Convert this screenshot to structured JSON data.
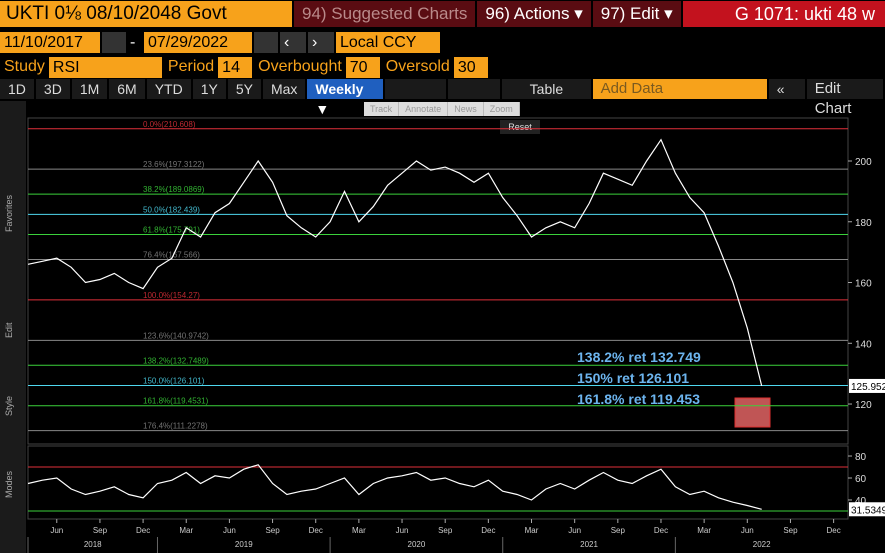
{
  "header": {
    "security": "UKTI 0⅛ 08/10/2048 Govt",
    "menus": [
      "94) Suggested Charts",
      "96) Actions ▾",
      "97) Edit ▾"
    ],
    "ticker": "G 1071: ukti 48 w"
  },
  "dates": {
    "start": "11/10/2017",
    "end": "07/29/2022",
    "currency": "Local CCY"
  },
  "study": {
    "label": "Study",
    "name": "RSI",
    "period_label": "Period",
    "period": "14",
    "overbought_label": "Overbought",
    "overbought": "70",
    "oversold_label": "Oversold",
    "oversold": "30"
  },
  "toolbar": {
    "ranges": [
      "1D",
      "3D",
      "1M",
      "6M",
      "YTD",
      "1Y",
      "5Y",
      "Max"
    ],
    "frequency": "Weekly ▼",
    "table": "Table",
    "add_data": "Add Data",
    "edit_chart": "Edit Chart"
  },
  "tools": [
    "Track",
    "Annotate",
    "News",
    "Zoom"
  ],
  "reset": "Reset",
  "sidebar": [
    "Favorites",
    "Edit",
    "Style",
    "Modes"
  ],
  "chart_data": [
    {
      "type": "line",
      "color": "#ffffff",
      "x": [
        "2018-04",
        "2018-05",
        "2018-06",
        "2018-07",
        "2018-08",
        "2018-09",
        "2018-10",
        "2018-11",
        "2018-12",
        "2019-01",
        "2019-02",
        "2019-03",
        "2019-04",
        "2019-05",
        "2019-06",
        "2019-07",
        "2019-08",
        "2019-09",
        "2019-10",
        "2019-11",
        "2019-12",
        "2020-01",
        "2020-02",
        "2020-03",
        "2020-04",
        "2020-05",
        "2020-06",
        "2020-07",
        "2020-08",
        "2020-09",
        "2020-10",
        "2020-11",
        "2020-12",
        "2021-01",
        "2021-02",
        "2021-03",
        "2021-04",
        "2021-05",
        "2021-06",
        "2021-07",
        "2021-08",
        "2021-09",
        "2021-10",
        "2021-11",
        "2021-12",
        "2022-01",
        "2022-02",
        "2022-03",
        "2022-04",
        "2022-05",
        "2022-06",
        "2022-07"
      ],
      "values": [
        166,
        167,
        168,
        165,
        160,
        161,
        163,
        160,
        158,
        165,
        168,
        178,
        175,
        183,
        186,
        193,
        200,
        193,
        182,
        178,
        175,
        180,
        190,
        180,
        185,
        192,
        196,
        200,
        197,
        198,
        196,
        193,
        196,
        188,
        182,
        175,
        178,
        180,
        178,
        186,
        196,
        194,
        192,
        200,
        207,
        196,
        188,
        183,
        172,
        160,
        145,
        125.952
      ],
      "xlim": [
        "2018-04",
        "2023-01"
      ],
      "ylim": [
        107.5,
        213.5
      ],
      "yticks": [
        120,
        140,
        160,
        180,
        200
      ],
      "levels": [
        {
          "label": "0.0%(210.608)",
          "value": 210.608,
          "color": "#e0303a"
        },
        {
          "label": "23.6%(197.3122)",
          "value": 197.3122,
          "color": "#888888"
        },
        {
          "label": "38.2%(189.0869)",
          "value": 189.0869,
          "color": "#3bd13b"
        },
        {
          "label": "50.0%(182.439)",
          "value": 182.439,
          "color": "#4fd8f0"
        },
        {
          "label": "61.8%(175.791)",
          "value": 175.791,
          "color": "#3bd13b"
        },
        {
          "label": "76.4%(167.566)",
          "value": 167.566,
          "color": "#888888"
        },
        {
          "label": "100.0%(154.27)",
          "value": 154.27,
          "color": "#e0303a"
        },
        {
          "label": "123.6%(140.9742)",
          "value": 140.9742,
          "color": "#888888"
        },
        {
          "label": "138.2%(132.7489)",
          "value": 132.7489,
          "color": "#3bd13b"
        },
        {
          "label": "150.0%(126.101)",
          "value": 126.101,
          "color": "#4fd8f0"
        },
        {
          "label": "161.8%(119.4531)",
          "value": 119.4531,
          "color": "#3bd13b"
        },
        {
          "label": "176.4%(111.2278)",
          "value": 111.2278,
          "color": "#888888"
        }
      ],
      "annotations": [
        "138.2% ret 132.749",
        "150% ret 126.101",
        "161.8% ret 119.453"
      ],
      "last_value": 125.952
    },
    {
      "type": "line",
      "color": "#ffffff",
      "x": [
        "2018-04",
        "2018-05",
        "2018-06",
        "2018-07",
        "2018-08",
        "2018-09",
        "2018-10",
        "2018-11",
        "2018-12",
        "2019-01",
        "2019-02",
        "2019-03",
        "2019-04",
        "2019-05",
        "2019-06",
        "2019-07",
        "2019-08",
        "2019-09",
        "2019-10",
        "2019-11",
        "2019-12",
        "2020-01",
        "2020-02",
        "2020-03",
        "2020-04",
        "2020-05",
        "2020-06",
        "2020-07",
        "2020-08",
        "2020-09",
        "2020-10",
        "2020-11",
        "2020-12",
        "2021-01",
        "2021-02",
        "2021-03",
        "2021-04",
        "2021-05",
        "2021-06",
        "2021-07",
        "2021-08",
        "2021-09",
        "2021-10",
        "2021-11",
        "2021-12",
        "2022-01",
        "2022-02",
        "2022-03",
        "2022-04",
        "2022-05",
        "2022-06",
        "2022-07"
      ],
      "values": [
        55,
        58,
        60,
        50,
        45,
        48,
        52,
        45,
        42,
        55,
        58,
        65,
        55,
        62,
        60,
        68,
        72,
        55,
        45,
        48,
        50,
        55,
        60,
        45,
        55,
        60,
        62,
        65,
        58,
        60,
        55,
        52,
        58,
        48,
        45,
        40,
        50,
        55,
        50,
        58,
        65,
        58,
        55,
        62,
        68,
        52,
        45,
        48,
        42,
        38,
        35,
        31.5349
      ],
      "xlim": [
        "2018-04",
        "2023-01"
      ],
      "ylim": [
        24.5,
        87.3
      ],
      "yticks": [
        40,
        60,
        80
      ],
      "levels": [
        {
          "value": 70,
          "color": "#e0303a"
        },
        {
          "value": 30,
          "color": "#3bd13b"
        }
      ],
      "last_value": 31.5349,
      "xticks": [
        {
          "value": "2018-06",
          "label": "Jun"
        },
        {
          "value": "2018-09",
          "label": "Sep"
        },
        {
          "value": "2018-12",
          "label": "Dec"
        },
        {
          "value": "2019-03",
          "label": "Mar"
        },
        {
          "value": "2019-06",
          "label": "Jun"
        },
        {
          "value": "2019-09",
          "label": "Sep"
        },
        {
          "value": "2019-12",
          "label": "Dec"
        },
        {
          "value": "2020-03",
          "label": "Mar"
        },
        {
          "value": "2020-06",
          "label": "Jun"
        },
        {
          "value": "2020-09",
          "label": "Sep"
        },
        {
          "value": "2020-12",
          "label": "Dec"
        },
        {
          "value": "2021-03",
          "label": "Mar"
        },
        {
          "value": "2021-06",
          "label": "Jun"
        },
        {
          "value": "2021-09",
          "label": "Sep"
        },
        {
          "value": "2021-12",
          "label": "Dec"
        },
        {
          "value": "2022-03",
          "label": "Mar"
        },
        {
          "value": "2022-06",
          "label": "Jun"
        },
        {
          "value": "2022-09",
          "label": "Sep"
        },
        {
          "value": "2022-12",
          "label": "Dec"
        }
      ],
      "years": [
        "2018",
        "2019",
        "2020",
        "2021",
        "2022"
      ]
    }
  ]
}
